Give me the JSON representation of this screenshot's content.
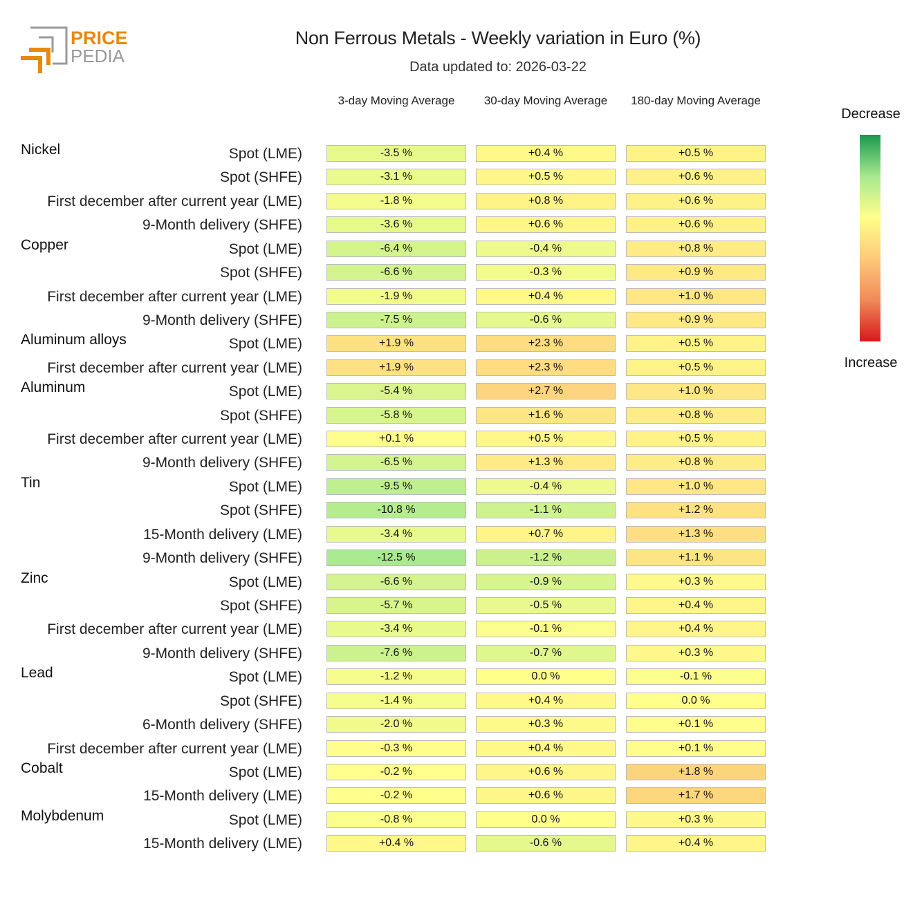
{
  "brand": {
    "line1": "PRICE",
    "line2": "PEDIA",
    "orange": "#e8890c",
    "gray": "#9a9a9a"
  },
  "chart_data": {
    "type": "heatmap",
    "title": "Non Ferrous Metals - Weekly variation in Euro (%)",
    "subtitle": "Data updated to: 2026-03-22",
    "columns": [
      "3-day Moving Average",
      "30-day Moving Average",
      "180-day Moving Average"
    ],
    "legend": {
      "top": "Decrease",
      "bottom": "Increase",
      "colors": [
        "#1a9850",
        "#a6e88f",
        "#ffff8c",
        "#fdc97a",
        "#f08a5a",
        "#d7191c"
      ]
    },
    "rows": [
      {
        "group": "Nickel",
        "label": "Spot (LME)",
        "values": [
          -3.5,
          0.4,
          0.5
        ]
      },
      {
        "group": "",
        "label": "Spot (SHFE)",
        "values": [
          -3.1,
          0.5,
          0.6
        ]
      },
      {
        "group": "",
        "label": "First december after current year (LME)",
        "values": [
          -1.8,
          0.8,
          0.6
        ]
      },
      {
        "group": "",
        "label": "9-Month delivery (SHFE)",
        "values": [
          -3.6,
          0.6,
          0.6
        ]
      },
      {
        "group": "Copper",
        "label": "Spot (LME)",
        "values": [
          -6.4,
          -0.4,
          0.8
        ]
      },
      {
        "group": "",
        "label": "Spot (SHFE)",
        "values": [
          -6.6,
          -0.3,
          0.9
        ]
      },
      {
        "group": "",
        "label": "First december after current year (LME)",
        "values": [
          -1.9,
          0.4,
          1.0
        ]
      },
      {
        "group": "",
        "label": "9-Month delivery (SHFE)",
        "values": [
          -7.5,
          -0.6,
          0.9
        ]
      },
      {
        "group": "Aluminum alloys",
        "label": "Spot (LME)",
        "values": [
          1.9,
          2.3,
          0.5
        ]
      },
      {
        "group": "",
        "label": "First december after current year (LME)",
        "values": [
          1.9,
          2.3,
          0.5
        ]
      },
      {
        "group": "Aluminum",
        "label": "Spot (LME)",
        "values": [
          -5.4,
          2.7,
          1.0
        ]
      },
      {
        "group": "",
        "label": "Spot (SHFE)",
        "values": [
          -5.8,
          1.6,
          0.8
        ]
      },
      {
        "group": "",
        "label": "First december after current year (LME)",
        "values": [
          0.1,
          0.5,
          0.5
        ]
      },
      {
        "group": "",
        "label": "9-Month delivery (SHFE)",
        "values": [
          -6.5,
          1.3,
          0.8
        ]
      },
      {
        "group": "Tin",
        "label": "Spot (LME)",
        "values": [
          -9.5,
          -0.4,
          1.0
        ]
      },
      {
        "group": "",
        "label": "Spot (SHFE)",
        "values": [
          -10.8,
          -1.1,
          1.2
        ]
      },
      {
        "group": "",
        "label": "15-Month delivery (LME)",
        "values": [
          -3.4,
          0.7,
          1.3
        ]
      },
      {
        "group": "",
        "label": "9-Month delivery (SHFE)",
        "values": [
          -12.5,
          -1.2,
          1.1
        ]
      },
      {
        "group": "Zinc",
        "label": "Spot (LME)",
        "values": [
          -6.6,
          -0.9,
          0.3
        ]
      },
      {
        "group": "",
        "label": "Spot (SHFE)",
        "values": [
          -5.7,
          -0.5,
          0.4
        ]
      },
      {
        "group": "",
        "label": "First december after current year (LME)",
        "values": [
          -3.4,
          -0.1,
          0.4
        ]
      },
      {
        "group": "",
        "label": "9-Month delivery (SHFE)",
        "values": [
          -7.6,
          -0.7,
          0.3
        ]
      },
      {
        "group": "Lead",
        "label": "Spot (LME)",
        "values": [
          -1.2,
          0.0,
          -0.1
        ]
      },
      {
        "group": "",
        "label": "Spot (SHFE)",
        "values": [
          -1.4,
          0.4,
          0.0
        ]
      },
      {
        "group": "",
        "label": "6-Month delivery (SHFE)",
        "values": [
          -2.0,
          0.3,
          0.1
        ]
      },
      {
        "group": "",
        "label": "First december after current year (LME)",
        "values": [
          -0.3,
          0.4,
          0.1
        ]
      },
      {
        "group": "Cobalt",
        "label": "Spot (LME)",
        "values": [
          -0.2,
          0.6,
          1.8
        ]
      },
      {
        "group": "",
        "label": "15-Month delivery (LME)",
        "values": [
          -0.2,
          0.6,
          1.7
        ]
      },
      {
        "group": "Molybdenum",
        "label": "Spot (LME)",
        "values": [
          -0.8,
          0.0,
          0.3
        ]
      },
      {
        "group": "",
        "label": "15-Month delivery (LME)",
        "values": [
          0.4,
          -0.6,
          0.4
        ]
      }
    ]
  }
}
